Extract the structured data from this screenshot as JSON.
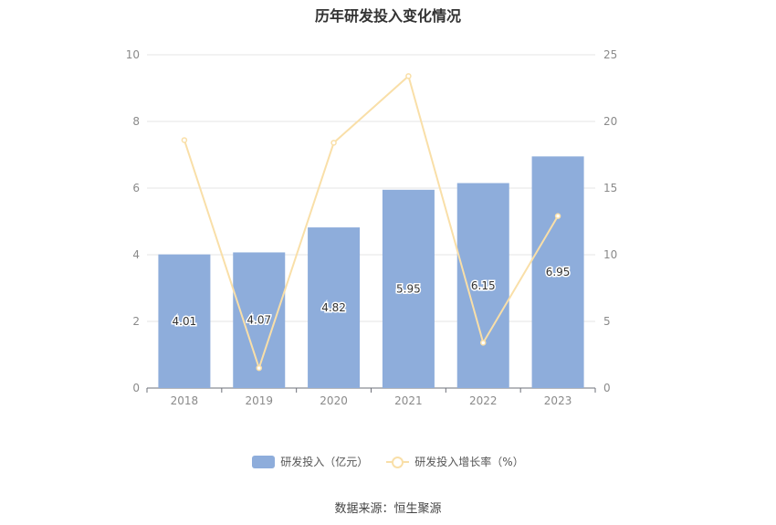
{
  "chart_data": {
    "type": "bar",
    "title": "历年研发投入变化情况",
    "categories": [
      "2018",
      "2019",
      "2020",
      "2021",
      "2022",
      "2023"
    ],
    "series": [
      {
        "name": "研发投入（亿元）",
        "type": "bar",
        "axis": "left",
        "values": [
          4.01,
          4.07,
          4.82,
          5.95,
          6.15,
          6.95
        ],
        "labels": [
          "4.01",
          "4.07",
          "4.82",
          "5.95",
          "6.15",
          "6.95"
        ],
        "color": "#8eaddb"
      },
      {
        "name": "研发投入增长率（%）",
        "type": "line",
        "axis": "right",
        "values": [
          18.6,
          1.5,
          18.4,
          23.4,
          3.4,
          12.9
        ],
        "color": "#f9dfa8"
      }
    ],
    "y_left": {
      "min": 0,
      "max": 10,
      "ticks": [
        "0",
        "2",
        "4",
        "6",
        "8",
        "10"
      ]
    },
    "y_right": {
      "min": 0,
      "max": 25,
      "ticks": [
        "0",
        "5",
        "10",
        "15",
        "20",
        "25"
      ]
    },
    "grid": true,
    "legend_position": "bottom"
  },
  "source": "数据来源：恒生聚源"
}
